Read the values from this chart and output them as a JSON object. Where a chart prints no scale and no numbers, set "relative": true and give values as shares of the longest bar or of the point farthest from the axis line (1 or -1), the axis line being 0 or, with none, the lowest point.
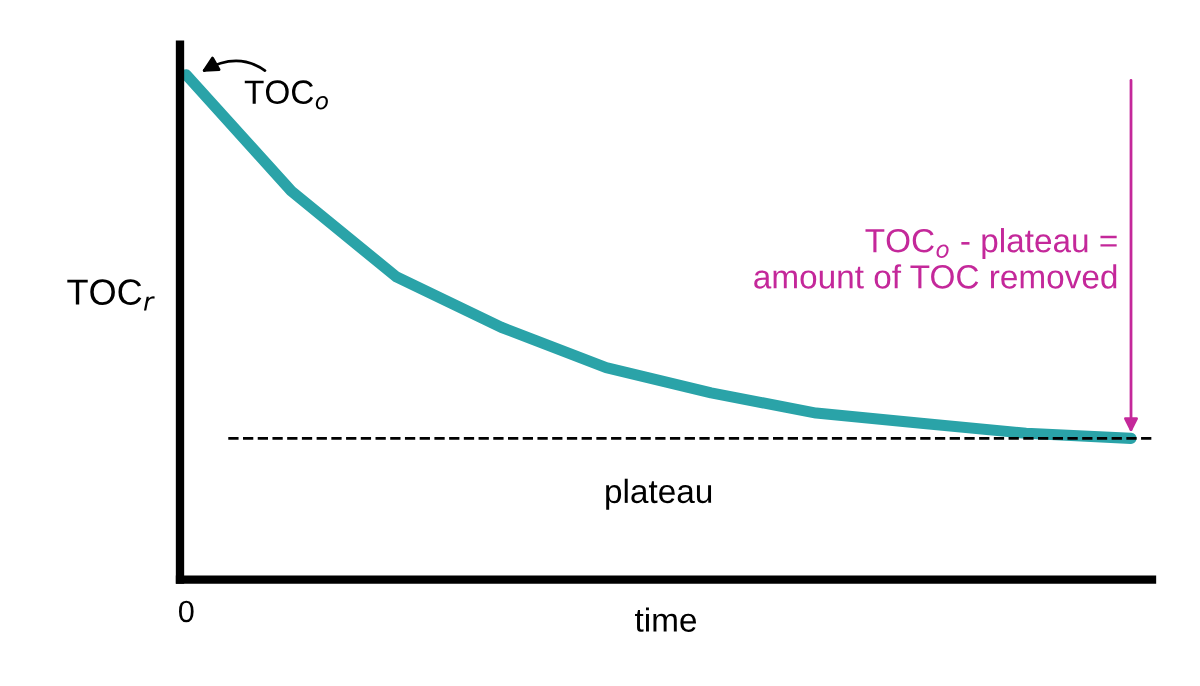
{
  "chart_data": {
    "type": "line",
    "relative": true,
    "xlabel": "time",
    "ylabel": "TOC$_{r}$",
    "categories": [
      null,
      null,
      null,
      null,
      null,
      null,
      null,
      null,
      null,
      null
    ],
    "series": [
      {
        "color": "#2aa3a8",
        "values": [
          1.0,
          0.77,
          0.6,
          0.5,
          0.42,
          0.37,
          0.33,
          0.31,
          0.29,
          0.28
        ]
      }
    ],
    "ref_lines": [
      {
        "axis": "y",
        "value": 0.28,
        "label": "plateau",
        "color": "#000000",
        "line_style": "dashed"
      }
    ],
    "annotations": [
      "TOC$_{o}$",
      "TOC$_{o}$ - plateau =\namount of TOC removed",
      "0"
    ],
    "grid": false,
    "marker": "none",
    "line_style": "solid"
  }
}
